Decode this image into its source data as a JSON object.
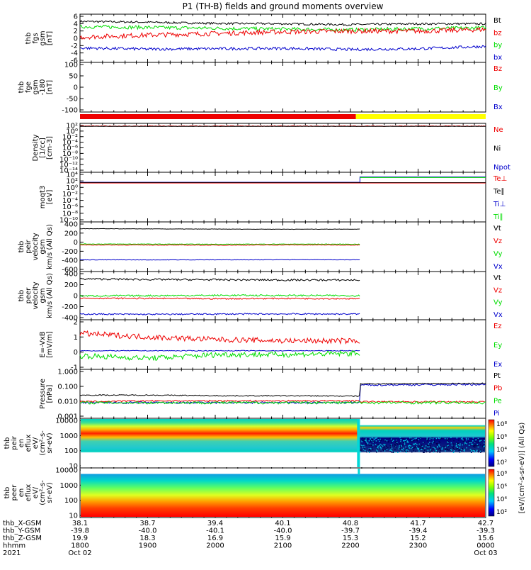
{
  "title": "P1 (TH-B) fields and ground moments overview",
  "colors": {
    "black": "#000000",
    "red": "#ee0000",
    "green": "#00dd00",
    "blue": "#0000cc",
    "yellow": "#ffff00",
    "cyan": "#00d8d8"
  },
  "panels": [
    {
      "id": "fgs",
      "ylabel": [
        "thb",
        "fgs",
        "gsm",
        "[nT]"
      ],
      "ticks": [
        "6",
        "4",
        "2",
        "0",
        "-2",
        "-4",
        "-6"
      ],
      "legend": [
        {
          "t": "Bt",
          "c": "black"
        },
        {
          "t": "bz",
          "c": "red"
        },
        {
          "t": "by",
          "c": "green"
        },
        {
          "t": "bx",
          "c": "blue"
        }
      ]
    },
    {
      "id": "fge",
      "ylabel": [
        "thb",
        "fge",
        "gsm",
        "-180",
        "[nT]"
      ],
      "ticks": [
        "100",
        "50",
        "0",
        "-50",
        "-100"
      ],
      "legend": [
        {
          "t": "Bz",
          "c": "red"
        },
        {
          "t": "By",
          "c": "green"
        },
        {
          "t": "Bx",
          "c": "blue"
        }
      ]
    },
    {
      "id": "density",
      "ylabel": [
        "Density",
        "[1/cc]",
        "[cm-3]"
      ],
      "ticks": [
        "10²",
        "10⁰",
        "10⁻²",
        "10⁻⁴",
        "10⁻⁶",
        "10⁻⁸",
        "10⁻¹⁰",
        "10⁻¹²",
        "10⁻¹⁴"
      ],
      "legend": [
        {
          "t": "Ne",
          "c": "red"
        },
        {
          "t": "Ni",
          "c": "black"
        },
        {
          "t": "Npot",
          "c": "blue"
        }
      ]
    },
    {
      "id": "temp",
      "ylabel": [
        "moqt3",
        "[eV]"
      ],
      "ticks": [
        "10⁴",
        "10²",
        "10⁰",
        "10⁻²",
        "10⁻⁴",
        "10⁻⁶",
        "10⁻⁸",
        "10⁻¹⁰"
      ],
      "legend": [
        {
          "t": "Te⊥",
          "c": "red"
        },
        {
          "t": "Te∥",
          "c": "black"
        },
        {
          "t": "Ti⊥",
          "c": "blue"
        },
        {
          "t": "Ti∥",
          "c": "green"
        }
      ]
    },
    {
      "id": "peir_vel",
      "ylabel": [
        "thb",
        "peir",
        "velocity",
        "gsm",
        "km/s (All Qs)"
      ],
      "ticks": [
        "400",
        "200",
        "0",
        "-200",
        "-400",
        "-600"
      ],
      "legend": [
        {
          "t": "Vt",
          "c": "black"
        },
        {
          "t": "Vz",
          "c": "red"
        },
        {
          "t": "Vy",
          "c": "green"
        },
        {
          "t": "Vx",
          "c": "blue"
        }
      ]
    },
    {
      "id": "peer_vel",
      "ylabel": [
        "thb",
        "peer",
        "velocity",
        "gsm",
        "km/s (All Qs)"
      ],
      "ticks": [
        "400",
        "200",
        "0",
        "-200",
        "-400"
      ],
      "legend": [
        {
          "t": "Vt",
          "c": "black"
        },
        {
          "t": "Vz",
          "c": "red"
        },
        {
          "t": "Vy",
          "c": "green"
        },
        {
          "t": "Vx",
          "c": "blue"
        }
      ]
    },
    {
      "id": "efield",
      "ylabel": [
        "E=-VxB",
        "[mV/m]"
      ],
      "ticks": [
        "2",
        "1",
        "0",
        "-1"
      ],
      "legend": [
        {
          "t": "Ez",
          "c": "red"
        },
        {
          "t": "Ey",
          "c": "green"
        },
        {
          "t": "Ex",
          "c": "blue"
        }
      ]
    },
    {
      "id": "pressure",
      "ylabel": [
        "Pressure",
        "[nPa]"
      ],
      "ticks": [
        "1.000",
        "0.100",
        "0.010",
        "0.001"
      ],
      "legend": [
        {
          "t": "Pt",
          "c": "black"
        },
        {
          "t": "Pb",
          "c": "red"
        },
        {
          "t": "Pe",
          "c": "green"
        },
        {
          "t": "Pi",
          "c": "blue"
        }
      ]
    },
    {
      "id": "peir_flux",
      "ylabel": [
        "thb",
        "peir",
        "en",
        "eflux",
        "eV/",
        "(cm²-s-",
        "sr-eV)"
      ],
      "ticks": [
        "10000",
        "1000",
        "100",
        "10"
      ]
    },
    {
      "id": "peer_flux",
      "ylabel": [
        "thb",
        "peer",
        "en",
        "eflux",
        "eV/",
        "(cm²-s-",
        "sr-eV)"
      ],
      "ticks": [
        "10000",
        "1000",
        "100",
        "10"
      ]
    }
  ],
  "colorbar": {
    "label": "[eV/(cm²-s-sr-eV)] (All Qs)",
    "ticks_top": [
      "10⁸",
      "10⁶",
      "10⁴",
      "10²"
    ],
    "ticks_bottom": [
      "10⁸",
      "10⁶",
      "10⁴",
      "10²"
    ]
  },
  "x_axis": {
    "rows": [
      {
        "label": "thb_X-GSM",
        "values": [
          "38.1",
          "38.7",
          "39.4",
          "40.1",
          "40.8",
          "41.7",
          "42.7"
        ]
      },
      {
        "label": "thb_Y-GSM",
        "values": [
          "-39.8",
          "-40.0",
          "-40.1",
          "-40.0",
          "-39.7",
          "-39.4",
          "-39.3"
        ]
      },
      {
        "label": "thb_Z-GSM",
        "values": [
          "19.9",
          "18.3",
          "16.9",
          "15.9",
          "15.3",
          "15.2",
          "15.6"
        ]
      },
      {
        "label": "hhmm",
        "values": [
          "1800",
          "1900",
          "2000",
          "2100",
          "2200",
          "2300",
          "0000"
        ]
      },
      {
        "label": "2021",
        "values": [
          "Oct 02",
          "",
          "",
          "",
          "",
          "",
          "Oct 03"
        ]
      }
    ]
  },
  "chart_data": {
    "type": "line",
    "title": "P1 (TH-B) fields and ground moments overview",
    "x_time": [
      "1800",
      "1900",
      "2000",
      "2100",
      "2200",
      "2300",
      "0000"
    ],
    "date_start": "2021 Oct 02",
    "date_end": "2021 Oct 03",
    "fgs_nT": {
      "Bt": [
        4.2,
        4.0,
        3.7,
        3.6,
        3.4,
        3.6,
        3.6
      ],
      "bz": [
        0.3,
        0.8,
        1.2,
        1.6,
        1.8,
        1.8,
        2.2
      ],
      "by": [
        2.9,
        2.7,
        2.5,
        2.3,
        2.1,
        2.4,
        2.6
      ],
      "bx": [
        -2.4,
        -2.7,
        -2.6,
        -2.5,
        -2.8,
        -2.6,
        -2.0
      ],
      "ylim": [
        -6,
        6
      ]
    },
    "peir_velocity_kms": {
      "Vt": [
        350,
        345,
        340,
        338,
        340
      ],
      "Vz": [
        -10,
        -12,
        -15,
        -10,
        -12
      ],
      "Vy": [
        10,
        8,
        5,
        8,
        6
      ],
      "Vx": [
        -340,
        -342,
        -340,
        -338,
        -340
      ],
      "ylim": [
        -600,
        500
      ]
    },
    "peer_velocity_kms": {
      "Vt": [
        320,
        310,
        305,
        300,
        300
      ],
      "Vz": [
        -20,
        -25,
        -30,
        -25,
        -30
      ],
      "Vy": [
        20,
        25,
        30,
        28,
        25
      ],
      "Vx": [
        -300,
        -305,
        -300,
        -298,
        -300
      ],
      "ylim": [
        -400,
        450
      ]
    },
    "efield_mVm": {
      "Ez": [
        1.4,
        1.1,
        0.9,
        0.8,
        0.8
      ],
      "Ey": [
        -0.4,
        -0.6,
        -0.3,
        -0.3,
        -0.2
      ],
      "Ex": [
        0.0,
        0.0,
        0.0,
        0.0,
        0.0
      ],
      "ylim": [
        -1.5,
        2.5
      ]
    },
    "pressure_nPa": {
      "Pt": [
        0.02,
        0.02,
        0.018,
        0.018,
        0.017,
        0.12,
        0.13
      ],
      "Pb": [
        0.007,
        0.008,
        0.008,
        0.008,
        0.008,
        0.007,
        0.007
      ],
      "Pi": [
        0.006,
        0.006,
        0.006,
        0.006,
        0.006,
        0.1,
        0.11
      ],
      "ylim": [
        0.0005,
        1.2
      ],
      "log": true
    }
  }
}
